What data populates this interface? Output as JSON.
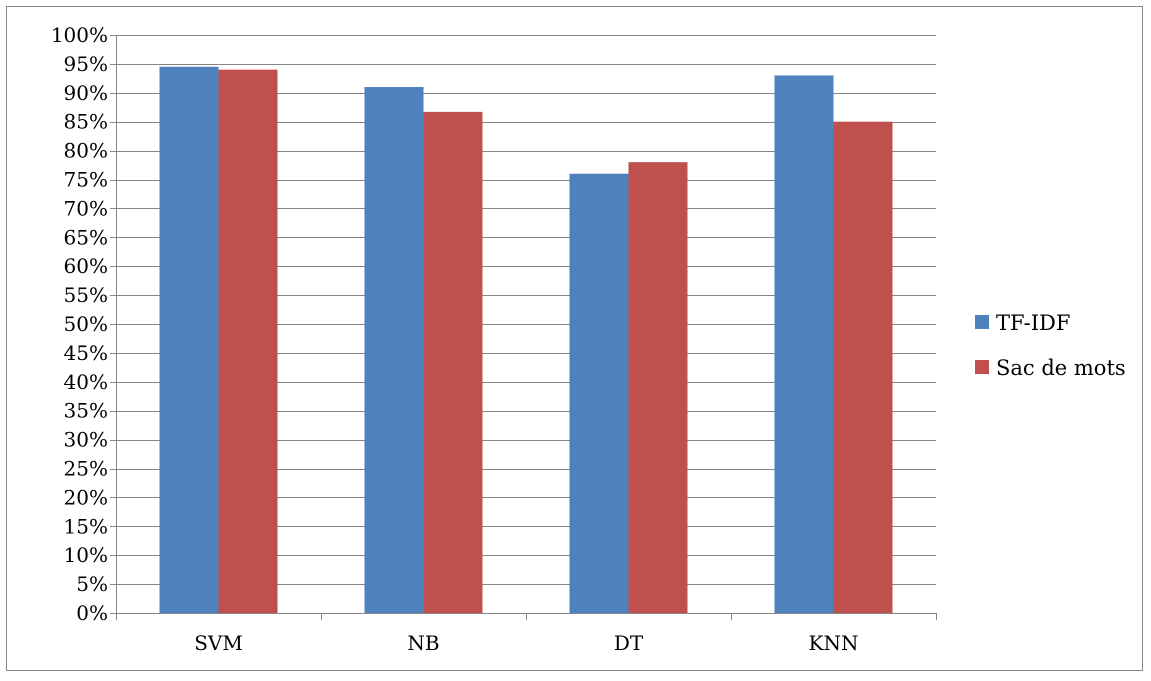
{
  "chart_data": {
    "type": "bar",
    "title": "",
    "xlabel": "",
    "ylabel": "",
    "categories": [
      "SVM",
      "NB",
      "DT",
      "KNN"
    ],
    "series": [
      {
        "name": "TF-IDF",
        "color": "#4F81BD",
        "values": [
          94.5,
          91,
          76,
          93
        ]
      },
      {
        "name": "Sac de mots",
        "color": "#C0504D",
        "values": [
          94,
          86.7,
          78,
          85
        ]
      }
    ],
    "ylim": [
      0,
      100
    ],
    "ytick_step": 5,
    "ytick_suffix": "%",
    "grid": true,
    "legend_position": "right",
    "gridline_color": "#868686",
    "axis_color": "#868686"
  }
}
